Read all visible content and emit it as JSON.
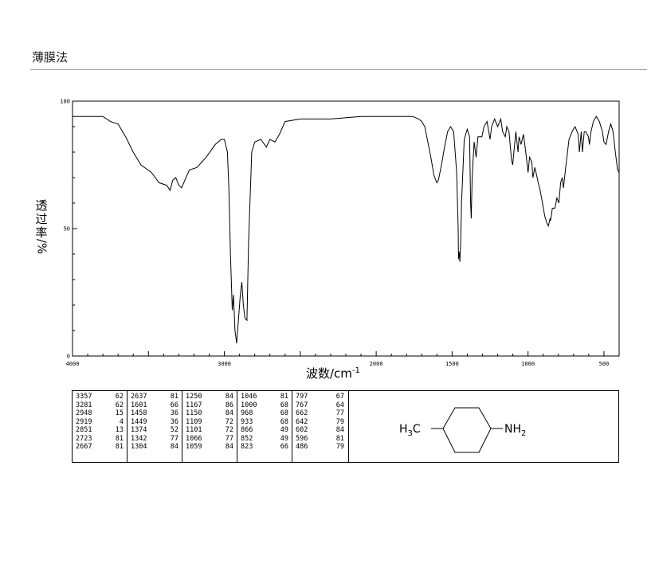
{
  "method_title": "薄膜法",
  "ylabel_chars": [
    "透",
    "过",
    "率",
    "/%"
  ],
  "xlabel": "波数/cm",
  "xlabel_sup": "-1",
  "structure": {
    "left_group": "H",
    "left_sub": "3",
    "left_tail": "C",
    "right_group": "NH",
    "right_sub": "2"
  },
  "chart_data": {
    "type": "line",
    "xlim": [
      4000,
      400
    ],
    "ylim": [
      0,
      100
    ],
    "x_ticks": [
      "4000",
      "3000",
      "2000",
      "1500",
      "1000",
      "500"
    ],
    "x_tick_values": [
      4000,
      3000,
      2000,
      1500,
      1000,
      500
    ],
    "y_ticks": [
      "0",
      "50",
      "100"
    ],
    "y_tick_values": [
      0,
      50,
      100
    ],
    "series": [
      {
        "points": [
          [
            4000,
            94
          ],
          [
            3900,
            94
          ],
          [
            3800,
            94
          ],
          [
            3750,
            92
          ],
          [
            3700,
            91
          ],
          [
            3650,
            86
          ],
          [
            3600,
            80
          ],
          [
            3550,
            75
          ],
          [
            3480,
            72
          ],
          [
            3430,
            68
          ],
          [
            3380,
            67
          ],
          [
            3357,
            65
          ],
          [
            3340,
            69
          ],
          [
            3320,
            70
          ],
          [
            3300,
            67
          ],
          [
            3281,
            66
          ],
          [
            3260,
            69
          ],
          [
            3230,
            73
          ],
          [
            3180,
            74
          ],
          [
            3120,
            78
          ],
          [
            3060,
            83
          ],
          [
            3020,
            85
          ],
          [
            3000,
            85
          ],
          [
            2980,
            80
          ],
          [
            2970,
            65
          ],
          [
            2960,
            40
          ],
          [
            2948,
            18
          ],
          [
            2940,
            24
          ],
          [
            2930,
            10
          ],
          [
            2919,
            5
          ],
          [
            2910,
            12
          ],
          [
            2895,
            24
          ],
          [
            2885,
            29
          ],
          [
            2875,
            20
          ],
          [
            2865,
            15
          ],
          [
            2851,
            14
          ],
          [
            2840,
            45
          ],
          [
            2820,
            80
          ],
          [
            2800,
            84
          ],
          [
            2760,
            85
          ],
          [
            2723,
            82
          ],
          [
            2700,
            85
          ],
          [
            2667,
            84
          ],
          [
            2637,
            87
          ],
          [
            2600,
            92
          ],
          [
            2500,
            93
          ],
          [
            2300,
            93
          ],
          [
            2100,
            94
          ],
          [
            1900,
            94
          ],
          [
            1800,
            94
          ],
          [
            1760,
            94
          ],
          [
            1720,
            93
          ],
          [
            1700,
            92
          ],
          [
            1680,
            90
          ],
          [
            1660,
            84
          ],
          [
            1640,
            78
          ],
          [
            1620,
            71
          ],
          [
            1601,
            68
          ],
          [
            1590,
            69
          ],
          [
            1570,
            75
          ],
          [
            1550,
            82
          ],
          [
            1530,
            88
          ],
          [
            1510,
            90
          ],
          [
            1490,
            88
          ],
          [
            1470,
            72
          ],
          [
            1460,
            50
          ],
          [
            1458,
            38
          ],
          [
            1454,
            41
          ],
          [
            1449,
            37
          ],
          [
            1444,
            44
          ],
          [
            1438,
            60
          ],
          [
            1420,
            85
          ],
          [
            1400,
            89
          ],
          [
            1385,
            86
          ],
          [
            1378,
            60
          ],
          [
            1374,
            54
          ],
          [
            1368,
            70
          ],
          [
            1355,
            84
          ],
          [
            1342,
            78
          ],
          [
            1330,
            86
          ],
          [
            1304,
            86
          ],
          [
            1290,
            90
          ],
          [
            1270,
            92
          ],
          [
            1250,
            85
          ],
          [
            1240,
            90
          ],
          [
            1220,
            93
          ],
          [
            1200,
            90
          ],
          [
            1180,
            93
          ],
          [
            1167,
            88
          ],
          [
            1150,
            86
          ],
          [
            1140,
            90
          ],
          [
            1125,
            88
          ],
          [
            1109,
            77
          ],
          [
            1101,
            75
          ],
          [
            1090,
            82
          ],
          [
            1080,
            88
          ],
          [
            1066,
            80
          ],
          [
            1059,
            86
          ],
          [
            1046,
            83
          ],
          [
            1030,
            87
          ],
          [
            1015,
            80
          ],
          [
            1000,
            72
          ],
          [
            990,
            78
          ],
          [
            975,
            76
          ],
          [
            968,
            70
          ],
          [
            955,
            74
          ],
          [
            940,
            70
          ],
          [
            933,
            68
          ],
          [
            920,
            65
          ],
          [
            905,
            60
          ],
          [
            890,
            55
          ],
          [
            875,
            52
          ],
          [
            866,
            51
          ],
          [
            855,
            54
          ],
          [
            852,
            53
          ],
          [
            840,
            58
          ],
          [
            823,
            58
          ],
          [
            810,
            62
          ],
          [
            797,
            60
          ],
          [
            785,
            68
          ],
          [
            775,
            70
          ],
          [
            767,
            66
          ],
          [
            750,
            75
          ],
          [
            730,
            85
          ],
          [
            710,
            88
          ],
          [
            690,
            90
          ],
          [
            670,
            87
          ],
          [
            662,
            80
          ],
          [
            650,
            88
          ],
          [
            642,
            80
          ],
          [
            630,
            88
          ],
          [
            620,
            88
          ],
          [
            610,
            87
          ],
          [
            602,
            86
          ],
          [
            596,
            83
          ],
          [
            585,
            88
          ],
          [
            570,
            92
          ],
          [
            550,
            94
          ],
          [
            530,
            92
          ],
          [
            510,
            88
          ],
          [
            500,
            84
          ],
          [
            486,
            83
          ],
          [
            470,
            88
          ],
          [
            455,
            91
          ],
          [
            440,
            88
          ],
          [
            425,
            80
          ],
          [
            410,
            73
          ],
          [
            400,
            72
          ]
        ]
      }
    ]
  },
  "peak_table": [
    [
      [
        "3357",
        "62"
      ],
      [
        "3281",
        "62"
      ],
      [
        "2948",
        "15"
      ],
      [
        "2919",
        "4"
      ],
      [
        "2851",
        "13"
      ],
      [
        "2723",
        "81"
      ],
      [
        "2667",
        "81"
      ]
    ],
    [
      [
        "2637",
        "81"
      ],
      [
        "1601",
        "66"
      ],
      [
        "1458",
        "36"
      ],
      [
        "1449",
        "36"
      ],
      [
        "1374",
        "52"
      ],
      [
        "1342",
        "77"
      ],
      [
        "1304",
        "84"
      ]
    ],
    [
      [
        "1250",
        "84"
      ],
      [
        "1167",
        "86"
      ],
      [
        "1150",
        "84"
      ],
      [
        "1109",
        "72"
      ],
      [
        "1101",
        "72"
      ],
      [
        "1066",
        "77"
      ],
      [
        "1059",
        "84"
      ]
    ],
    [
      [
        "1046",
        "81"
      ],
      [
        "1000",
        "68"
      ],
      [
        "968",
        "68"
      ],
      [
        "933",
        "68"
      ],
      [
        "866",
        "49"
      ],
      [
        "852",
        "49"
      ],
      [
        "823",
        "66"
      ]
    ],
    [
      [
        "797",
        "67"
      ],
      [
        "767",
        "64"
      ],
      [
        "662",
        "77"
      ],
      [
        "642",
        "79"
      ],
      [
        "602",
        "84"
      ],
      [
        "596",
        "81"
      ],
      [
        "486",
        "79"
      ]
    ]
  ]
}
